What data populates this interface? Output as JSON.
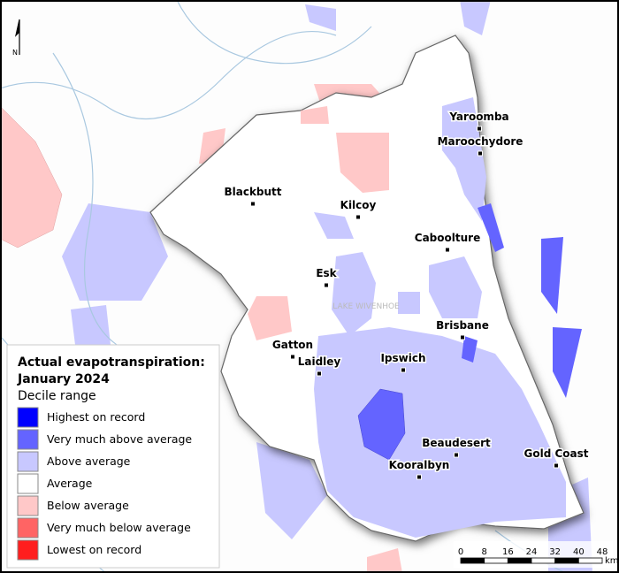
{
  "map": {
    "north_label": "N",
    "lake_label": "LAKE WIVENHOE",
    "towns": [
      "Yaroomba",
      "Maroochydore",
      "Blackbutt",
      "Kilcoy",
      "Caboolture",
      "Esk",
      "Brisbane",
      "Gatton",
      "Laidley",
      "Ipswich",
      "Beaudesert",
      "Kooralbyn",
      "Gold Coast"
    ]
  },
  "legend": {
    "title_line1": "Actual evapotranspiration:",
    "title_line2": "January 2024",
    "subtitle": "Decile range",
    "items": [
      {
        "label": "Highest on record",
        "color": "#0000ff"
      },
      {
        "label": "Very much above average",
        "color": "#6464ff"
      },
      {
        "label": "Above average",
        "color": "#c8c8ff"
      },
      {
        "label": "Average",
        "color": "#ffffff"
      },
      {
        "label": "Below average",
        "color": "#ffc8c8"
      },
      {
        "label": "Very much below average",
        "color": "#ff6464"
      },
      {
        "label": "Lowest on record",
        "color": "#ff1e1e"
      }
    ]
  },
  "scale_bar": {
    "ticks": [
      0,
      8,
      16,
      24,
      32,
      40,
      48
    ],
    "unit": "km"
  }
}
